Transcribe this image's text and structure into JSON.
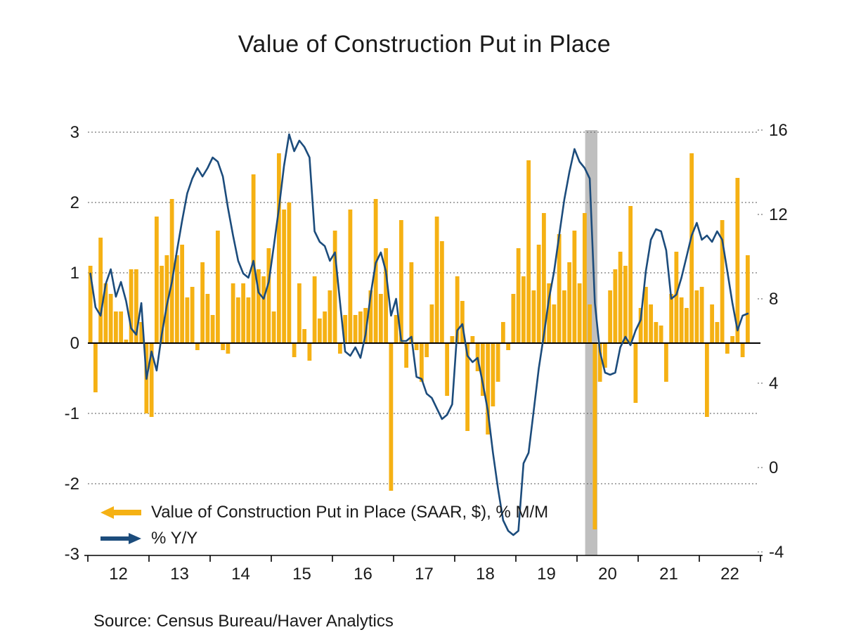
{
  "title": "Value of Construction Put in Place",
  "source": "Source:  Census Bureau/Haver Analytics",
  "legend": {
    "items": [
      {
        "label": "Value of Construction Put in Place (SAAR, $), % M/M",
        "marker": "arrow-left",
        "color": "#F5B114"
      },
      {
        "label": "% Y/Y",
        "marker": "arrow-right",
        "color": "#1C4C7C"
      }
    ]
  },
  "colors": {
    "bars": "#F5B114",
    "line": "#1C4C7C",
    "recession_band": "#BFBFBF",
    "axis": "#000000",
    "gridline": "#555555"
  },
  "chart_data": {
    "type": "bar+line combo, dual axis",
    "title": "Value of Construction Put in Place",
    "x_frequency": "monthly",
    "x_start": "2012-01",
    "x_end": "2022-10",
    "x_tick_labels": [
      "12",
      "13",
      "14",
      "15",
      "16",
      "17",
      "18",
      "19",
      "20",
      "21",
      "22"
    ],
    "left_axis": {
      "label": "% M/M",
      "ticks": [
        3,
        2,
        1,
        0,
        -1,
        -2,
        -3
      ],
      "range": [
        -3,
        3
      ],
      "gridlines_dotted": [
        3,
        2,
        1,
        -1,
        -2
      ]
    },
    "right_axis": {
      "label": "% Y/Y",
      "ticks": [
        16,
        12,
        8,
        4,
        0,
        -4
      ],
      "range": [
        -4,
        16
      ]
    },
    "recession_band": {
      "from": "2020-02",
      "to": "2020-04",
      "color": "#BFBFBF"
    },
    "series": [
      {
        "name": "Value of Construction Put in Place (SAAR, $), % M/M",
        "type": "bar",
        "axis": "left",
        "color": "#F5B114",
        "values": [
          1.1,
          -0.7,
          1.5,
          0.85,
          0.7,
          0.45,
          0.45,
          0.05,
          1.05,
          1.05,
          0.3,
          -1.0,
          -1.05,
          1.8,
          1.1,
          1.25,
          2.05,
          1.25,
          1.4,
          0.65,
          0.8,
          -0.1,
          1.15,
          0.7,
          0.4,
          1.6,
          -0.1,
          -0.15,
          0.85,
          0.65,
          0.85,
          0.65,
          2.4,
          1.05,
          0.95,
          1.35,
          0.45,
          2.7,
          1.9,
          2.0,
          -0.2,
          0.85,
          0.2,
          -0.25,
          0.95,
          0.35,
          0.45,
          0.75,
          1.6,
          -0.15,
          0.4,
          1.9,
          0.4,
          0.45,
          0.5,
          0.75,
          2.05,
          0.7,
          1.35,
          -2.1,
          0.4,
          1.75,
          -0.35,
          1.15,
          -0.1,
          -0.55,
          -0.2,
          0.55,
          1.8,
          1.45,
          -0.75,
          0.1,
          0.95,
          0.6,
          -1.25,
          0.1,
          -0.4,
          -0.75,
          -1.3,
          -0.9,
          -0.55,
          0.3,
          -0.1,
          0.7,
          1.35,
          0.95,
          2.6,
          0.75,
          1.4,
          1.85,
          0.85,
          0.55,
          1.55,
          0.75,
          1.15,
          1.6,
          0.85,
          1.85,
          0.55,
          -2.65,
          -0.55,
          -0.35,
          0.75,
          1.05,
          1.3,
          1.1,
          1.95,
          -0.85,
          0.5,
          0.8,
          0.55,
          0.3,
          0.25,
          -0.55,
          0.7,
          1.3,
          0.65,
          0.5,
          2.7,
          0.75,
          0.8,
          -1.05,
          0.55,
          0.3,
          1.75,
          -0.15,
          0.1,
          2.35,
          -0.2,
          1.25
        ]
      },
      {
        "name": "% Y/Y",
        "type": "line",
        "axis": "right",
        "color": "#1C4C7C",
        "values": [
          9.2,
          7.6,
          7.2,
          8.7,
          9.4,
          8.1,
          8.8,
          7.9,
          6.6,
          6.3,
          7.8,
          4.2,
          5.5,
          4.6,
          6.3,
          7.7,
          8.8,
          10.3,
          11.7,
          13.0,
          13.7,
          14.2,
          13.8,
          14.2,
          14.7,
          14.5,
          13.8,
          12.3,
          11.0,
          9.8,
          9.2,
          9.0,
          9.8,
          8.3,
          8.0,
          8.8,
          10.5,
          12.3,
          14.3,
          15.8,
          15.0,
          15.5,
          15.2,
          14.7,
          11.2,
          10.7,
          10.5,
          9.8,
          10.2,
          7.8,
          5.5,
          5.3,
          5.7,
          5.2,
          6.3,
          8.2,
          9.7,
          10.2,
          9.3,
          7.2,
          8.0,
          6.0,
          6.0,
          6.2,
          4.3,
          4.2,
          3.5,
          3.3,
          2.8,
          2.3,
          2.5,
          3.0,
          6.5,
          6.8,
          5.3,
          5.0,
          5.2,
          4.0,
          2.7,
          0.7,
          -1.0,
          -2.5,
          -3.0,
          -3.2,
          -3.0,
          0.2,
          0.7,
          2.7,
          4.7,
          6.3,
          8.0,
          9.3,
          11.0,
          12.7,
          14.0,
          15.1,
          14.5,
          14.2,
          13.7,
          7.8,
          5.5,
          4.5,
          4.4,
          4.5,
          5.7,
          6.2,
          5.8,
          6.5,
          7.0,
          9.3,
          10.8,
          11.3,
          11.2,
          10.3,
          8.0,
          8.2,
          9.0,
          10.0,
          11.0,
          11.6,
          10.8,
          11.0,
          10.7,
          11.2,
          10.8,
          9.3,
          7.8,
          6.5,
          7.2,
          7.3
        ]
      }
    ]
  }
}
